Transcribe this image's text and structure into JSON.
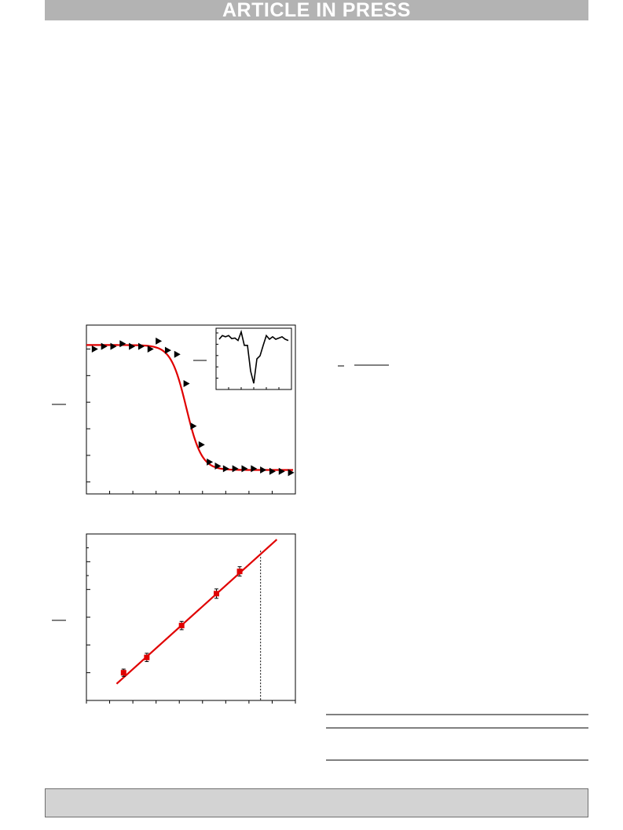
{
  "header": {
    "banner_text": "ARTICLE IN PRESS"
  },
  "colors": {
    "banner_bg": "#b3b3b3",
    "footer_bg": "#d3d3d3",
    "fit_line": "#e00000",
    "marker": "#000000",
    "square": "#e00000"
  },
  "chart_data": [
    {
      "type": "scatter",
      "title": "",
      "xlabel": "",
      "ylabel": "",
      "xlim": [
        0,
        9
      ],
      "ylim": [
        -0.45,
        5.9
      ],
      "grid": false,
      "series": [
        {
          "marker": "triangle-right",
          "x": [
            0.35,
            0.75,
            1.15,
            1.55,
            1.95,
            2.35,
            2.75,
            3.1,
            3.5,
            3.9,
            4.3,
            4.6,
            4.95,
            5.3,
            5.65,
            6.0,
            6.4,
            6.8,
            7.2,
            7.6,
            8.0,
            8.4,
            8.8
          ],
          "y": [
            5.0,
            5.1,
            5.1,
            5.2,
            5.1,
            5.1,
            5.0,
            5.3,
            4.95,
            4.8,
            3.7,
            2.1,
            1.4,
            0.75,
            0.6,
            0.5,
            0.5,
            0.5,
            0.5,
            0.45,
            0.4,
            0.4,
            0.35
          ]
        }
      ],
      "fit_curve": {
        "type": "sigmoid",
        "upper": 5.15,
        "lower": 0.45,
        "midpoint": 4.3,
        "width": 0.33
      },
      "inset": {
        "type": "line",
        "xlim": [
          0,
          12
        ],
        "ylim": [
          0,
          1
        ],
        "x": [
          0.5,
          1,
          1.5,
          2,
          2.5,
          3,
          3.5,
          4,
          4.5,
          5,
          5.5,
          6,
          6.5,
          7,
          7.5,
          8,
          8.5,
          9,
          9.5,
          10,
          10.5,
          11,
          11.5
        ],
        "y": [
          0.82,
          0.88,
          0.86,
          0.88,
          0.83,
          0.84,
          0.8,
          0.94,
          0.72,
          0.72,
          0.3,
          0.1,
          0.5,
          0.55,
          0.72,
          0.88,
          0.82,
          0.86,
          0.82,
          0.84,
          0.86,
          0.82,
          0.8
        ]
      }
    },
    {
      "type": "scatter",
      "title": "",
      "xlabel": "",
      "ylabel": "",
      "xlim": [
        0,
        9
      ],
      "ylim": [
        0,
        6
      ],
      "grid": false,
      "series": [
        {
          "marker": "square",
          "x": [
            1.6,
            2.6,
            4.1,
            5.6,
            6.6
          ],
          "y": [
            1.0,
            1.55,
            2.7,
            3.85,
            4.65
          ],
          "error": [
            0.13,
            0.15,
            0.15,
            0.17,
            0.17
          ]
        }
      ],
      "fit_line": {
        "x": [
          1.3,
          8.2
        ],
        "y": [
          0.6,
          5.8
        ]
      },
      "vline_x": 7.5
    }
  ]
}
